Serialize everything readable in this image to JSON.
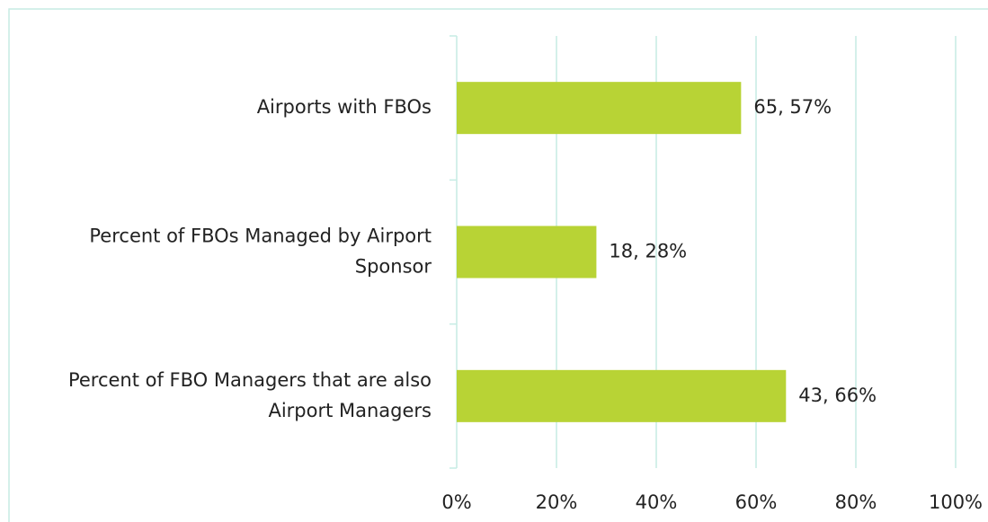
{
  "chart_data": {
    "type": "bar",
    "orientation": "horizontal",
    "categories": [
      "Airports with FBOs",
      "Percent of FBOs Managed by Airport Sponsor",
      "Percent of FBO Managers that are also Airport Managers"
    ],
    "values": [
      57,
      28,
      66
    ],
    "value_labels": [
      "65, 57%",
      "18, 28%",
      "43, 66%"
    ],
    "color": "#b8d335",
    "xlim": [
      0,
      100
    ],
    "xticks": [
      {
        "value": 0,
        "label": "0%"
      },
      {
        "value": 20,
        "label": "20%"
      },
      {
        "value": 40,
        "label": "40%"
      },
      {
        "value": 60,
        "label": "60%"
      },
      {
        "value": 80,
        "label": "80%"
      },
      {
        "value": 100,
        "label": "100%"
      }
    ],
    "grid": true
  }
}
